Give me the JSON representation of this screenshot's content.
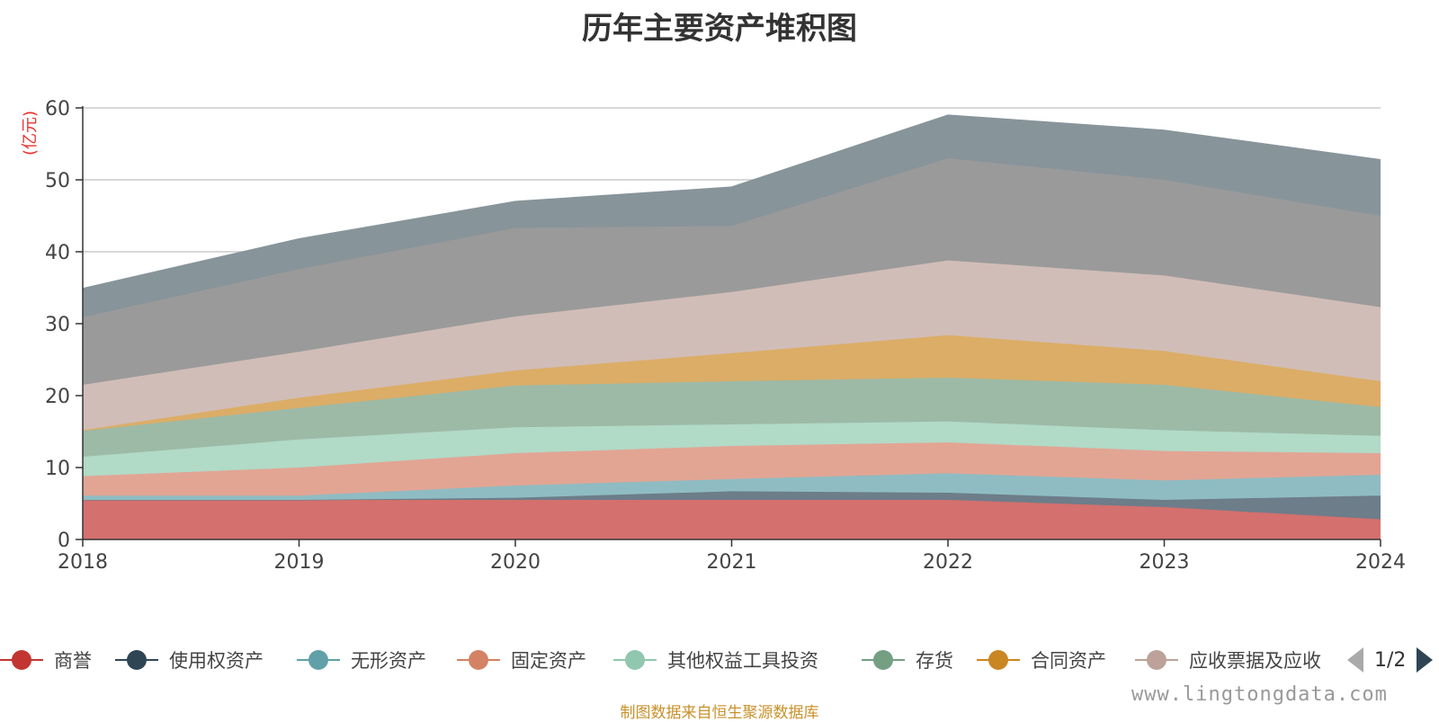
{
  "title": "历年主要资产堆积图",
  "unit_label": "(亿元)",
  "source_note": "制图数据来自恒生聚源数据库",
  "watermark": "www.lingtongdata.com",
  "legend_pager": "1/2",
  "colors": {
    "title": "#333333",
    "unit": "#e8322e",
    "source": "#c8912a",
    "grid": "#cccccc",
    "axis": "#333333"
  },
  "chart_data": {
    "type": "area",
    "stacked": true,
    "x": [
      "2018",
      "2019",
      "2020",
      "2021",
      "2022",
      "2023",
      "2024"
    ],
    "ylim": [
      0,
      60
    ],
    "yticks": [
      0,
      10,
      20,
      30,
      40,
      50,
      60
    ],
    "grid": true,
    "legend_position": "bottom",
    "series": [
      {
        "name": "商誉",
        "color": "#c23531",
        "area_color": "#d4706e",
        "values": [
          5.5,
          5.5,
          5.5,
          5.5,
          5.5,
          4.5,
          2.8
        ],
        "in_legend": true
      },
      {
        "name": "使用权资产",
        "color": "#2f4554",
        "area_color": "#6d7d89",
        "values": [
          0,
          0,
          0.3,
          1.2,
          1.0,
          1.0,
          3.3
        ],
        "in_legend": true
      },
      {
        "name": "无形资产",
        "color": "#61a0a8",
        "area_color": "#8fbcc2",
        "values": [
          0.6,
          0.6,
          1.7,
          1.7,
          2.7,
          2.7,
          2.9
        ],
        "in_legend": true
      },
      {
        "name": "固定资产",
        "color": "#d48265",
        "area_color": "#e2a594",
        "values": [
          2.7,
          3.9,
          4.5,
          4.6,
          4.3,
          4.1,
          3.0
        ],
        "in_legend": true
      },
      {
        "name": "其他权益工具投资",
        "color": "#91c7ae",
        "area_color": "#b1dac7",
        "values": [
          2.7,
          3.9,
          3.6,
          3.0,
          2.9,
          2.9,
          2.4
        ],
        "in_legend": true
      },
      {
        "name": "存货",
        "color": "#749f83",
        "area_color": "#9dbaa6",
        "values": [
          3.6,
          4.4,
          5.8,
          6.0,
          6.1,
          6.3,
          4.0
        ],
        "in_legend": true
      },
      {
        "name": "合同资产",
        "color": "#ca8622",
        "area_color": "#dbad67",
        "values": [
          0.1,
          1.4,
          2.1,
          3.9,
          5.9,
          4.7,
          3.6
        ],
        "in_legend": true
      },
      {
        "name": "应收票据及应收账款",
        "legend_label": "应收票据及应收",
        "color": "#bda29a",
        "area_color": "#d1bdb7",
        "values": [
          6.3,
          6.4,
          7.5,
          8.5,
          10.4,
          10.5,
          10.3
        ],
        "in_legend": true
      },
      {
        "name": "",
        "color": "#6e7074",
        "area_color": "#9a9a9b",
        "values": [
          9.4,
          11.5,
          12.3,
          9.2,
          14.2,
          13.3,
          12.7
        ],
        "in_legend": false
      },
      {
        "name": "",
        "color": "#546570",
        "area_color": "#87949a",
        "values": [
          4.0,
          4.2,
          3.7,
          5.4,
          6.0,
          6.9,
          7.8
        ],
        "in_legend": false
      }
    ]
  }
}
